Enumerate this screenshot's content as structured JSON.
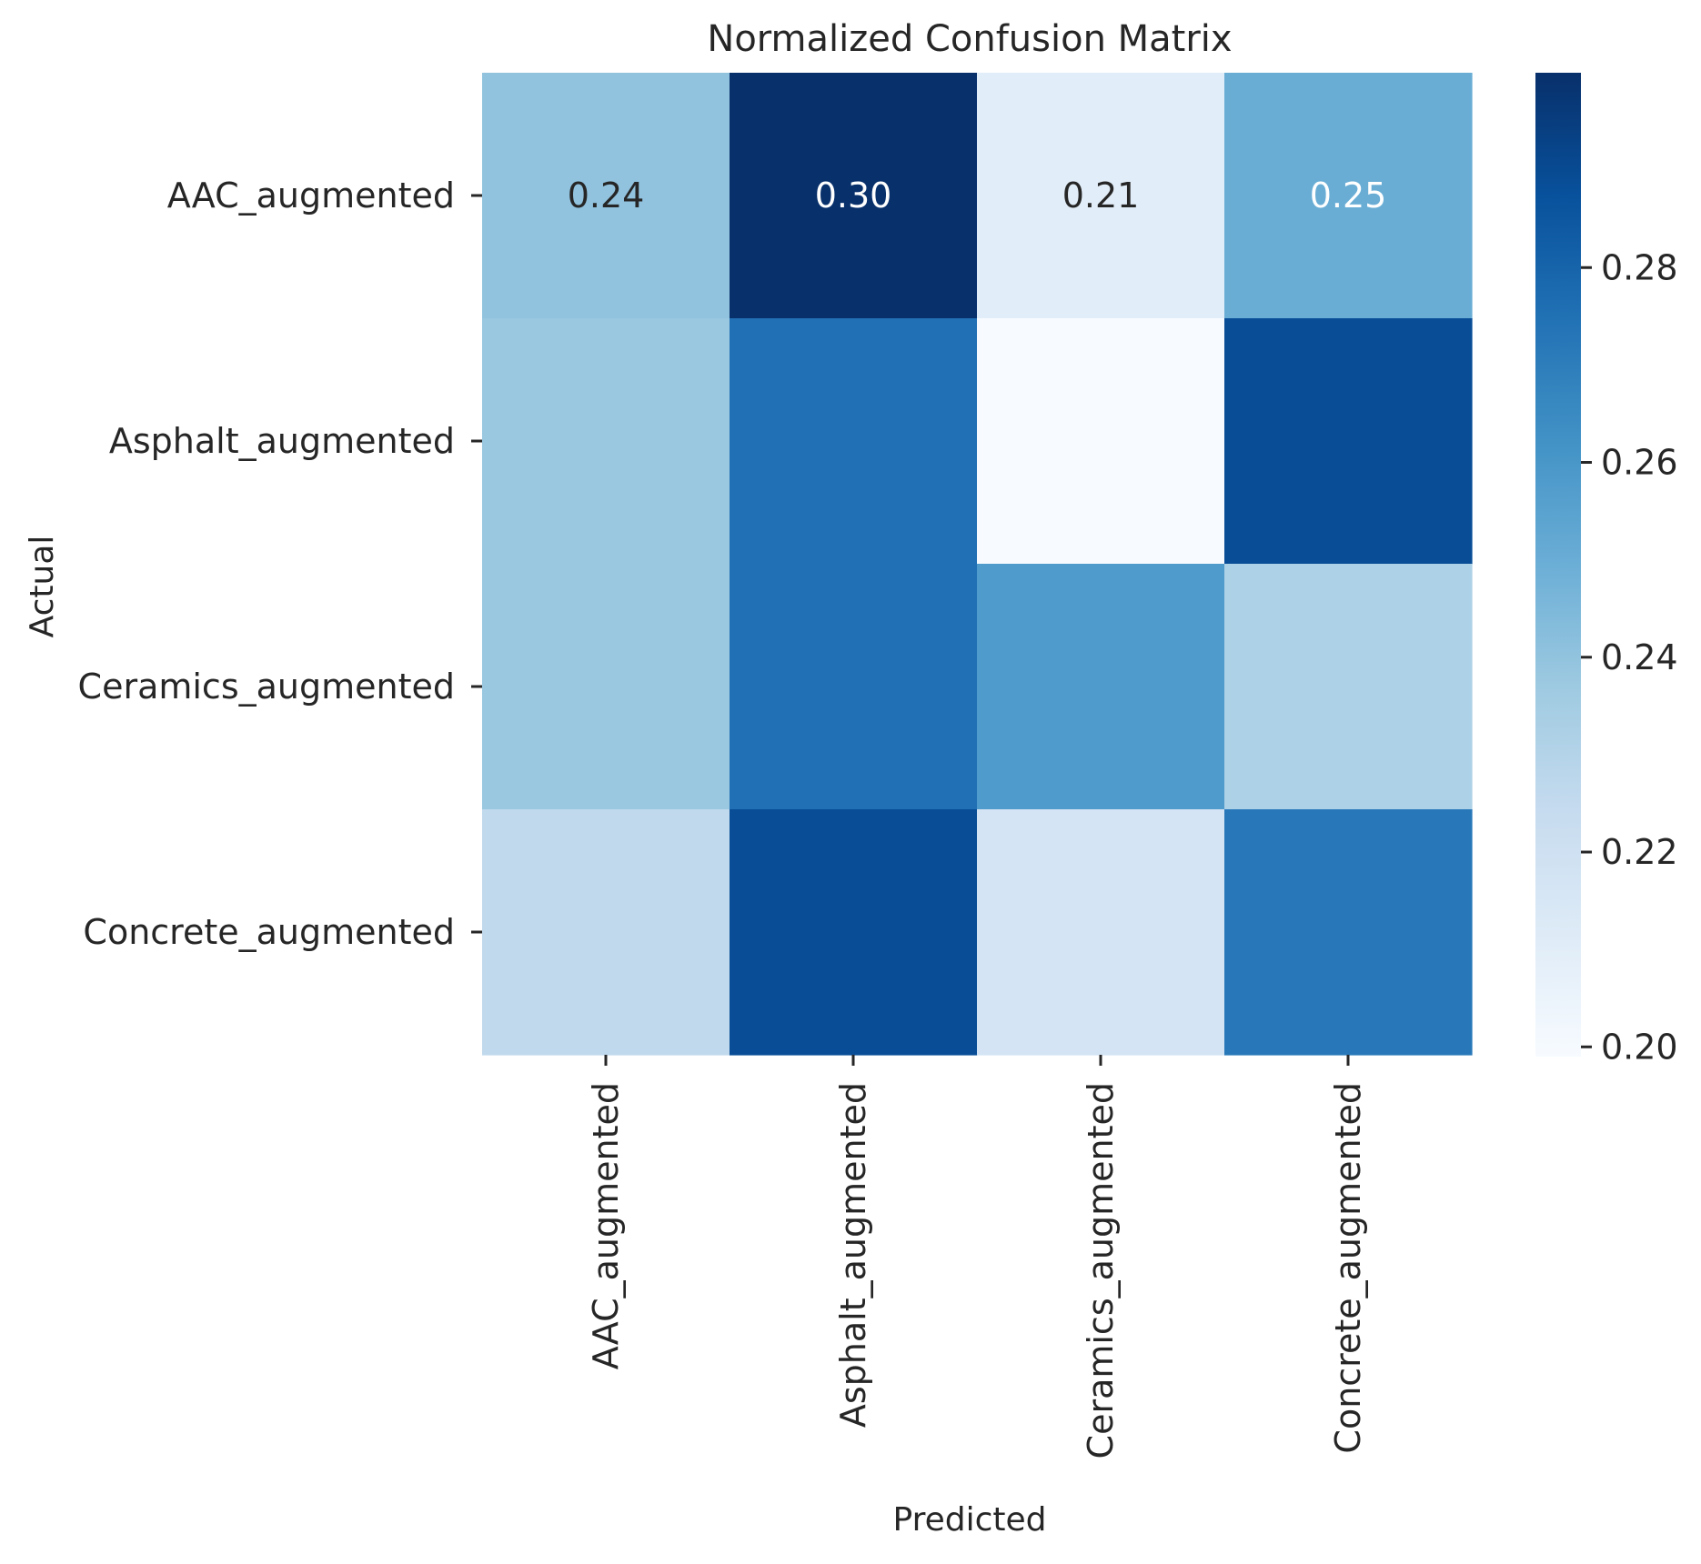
{
  "chart_data": {
    "type": "heatmap",
    "title": "Normalized Confusion Matrix",
    "xlabel": "Predicted",
    "ylabel": "Actual",
    "x_categories": [
      "AAC_augmented",
      "Asphalt_augmented",
      "Ceramics_augmented",
      "Concrete_augmented"
    ],
    "y_categories": [
      "AAC_augmented",
      "Asphalt_augmented",
      "Ceramics_augmented",
      "Concrete_augmented"
    ],
    "values": [
      [
        0.24,
        0.3,
        0.21,
        0.25
      ],
      [
        0.238,
        0.275,
        0.199,
        0.289
      ],
      [
        0.238,
        0.275,
        0.258,
        0.232
      ],
      [
        0.226,
        0.289,
        0.217,
        0.272
      ]
    ],
    "annotations": [
      [
        "0.24",
        "0.30",
        "0.21",
        "0.25"
      ],
      [
        "",
        "",
        "",
        ""
      ],
      [
        "",
        "",
        "",
        ""
      ],
      [
        "",
        "",
        "",
        ""
      ]
    ],
    "annotation_colors": [
      [
        "#262626",
        "#ffffff",
        "#262626",
        "#ffffff"
      ],
      [
        "#262626",
        "#262626",
        "#262626",
        "#262626"
      ],
      [
        "#262626",
        "#262626",
        "#262626",
        "#262626"
      ],
      [
        "#262626",
        "#262626",
        "#262626",
        "#262626"
      ]
    ],
    "colormap": "Blues",
    "color_range": [
      0.199,
      0.3
    ],
    "colorbar": {
      "ticks": [
        0.2,
        0.22,
        0.24,
        0.26,
        0.28
      ],
      "tick_labels": [
        "0.20",
        "0.22",
        "0.24",
        "0.26",
        "0.28"
      ]
    }
  }
}
